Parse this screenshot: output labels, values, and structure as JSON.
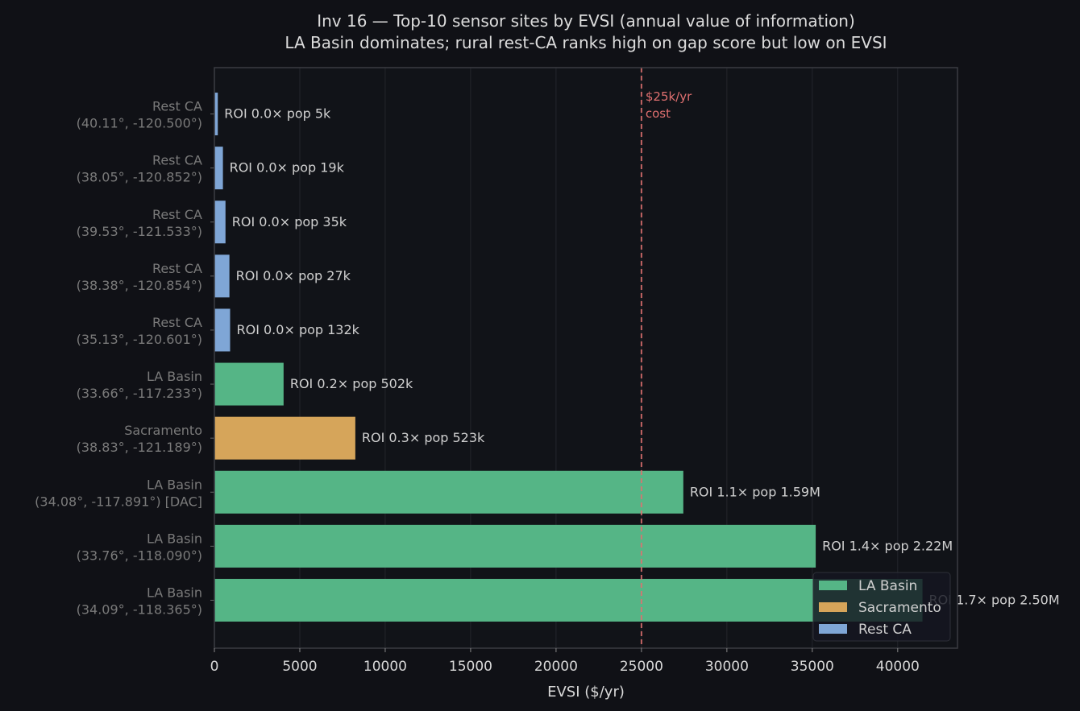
{
  "chart_data": {
    "type": "bar",
    "orientation": "horizontal",
    "title": "Inv 16 — Top-10 sensor sites by EVSI (annual value of information)",
    "subtitle": "LA Basin dominates; rural rest-CA ranks high on gap score but low on EVSI",
    "xlabel": "EVSI ($/yr)",
    "xlim": [
      0,
      43500
    ],
    "xticks": [
      0,
      5000,
      10000,
      15000,
      20000,
      25000,
      30000,
      35000,
      40000
    ],
    "grid": "x",
    "legend": "bottom-right",
    "reference_line": {
      "value": 25000,
      "label_line1": "$25k/yr",
      "label_line2": "cost",
      "color": "#e07070"
    },
    "series": [
      {
        "name": "LA Basin",
        "color": "#55b586"
      },
      {
        "name": "Sacramento",
        "color": "#d6a55a"
      },
      {
        "name": "Rest CA",
        "color": "#7fa6d6"
      }
    ],
    "bars": [
      {
        "region": "Rest CA",
        "coords": "(40.11°, -120.500°)",
        "value": 200,
        "annotation": "ROI 0.0×  pop 5k"
      },
      {
        "region": "Rest CA",
        "coords": "(38.05°, -120.852°)",
        "value": 500,
        "annotation": "ROI 0.0×  pop 19k"
      },
      {
        "region": "Rest CA",
        "coords": "(39.53°, -121.533°)",
        "value": 650,
        "annotation": "ROI 0.0×  pop 35k"
      },
      {
        "region": "Rest CA",
        "coords": "(38.38°, -120.854°)",
        "value": 880,
        "annotation": "ROI 0.0×  pop 27k"
      },
      {
        "region": "Rest CA",
        "coords": "(35.13°, -120.601°)",
        "value": 920,
        "annotation": "ROI 0.0×  pop 132k"
      },
      {
        "region": "LA Basin",
        "coords": "(33.66°, -117.233°)",
        "value": 4050,
        "annotation": "ROI 0.2×  pop 502k"
      },
      {
        "region": "Sacramento",
        "coords": "(38.83°, -121.189°)",
        "value": 8250,
        "annotation": "ROI 0.3×  pop 523k"
      },
      {
        "region": "LA Basin",
        "coords": "(34.08°, -117.891°)  [DAC]",
        "value": 27450,
        "annotation": "ROI 1.1×  pop 1.59M"
      },
      {
        "region": "LA Basin",
        "coords": "(33.76°, -118.090°)",
        "value": 35200,
        "annotation": "ROI 1.4×  pop 2.22M"
      },
      {
        "region": "LA Basin",
        "coords": "(34.09°, -118.365°)",
        "value": 41450,
        "annotation": "ROI 1.7×  pop 2.50M"
      }
    ]
  }
}
